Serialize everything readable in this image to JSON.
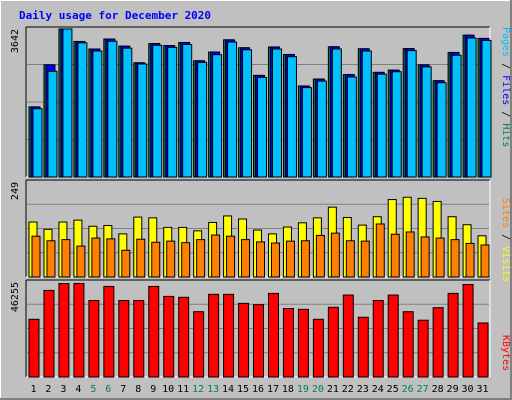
{
  "chart_data": {
    "type": "bar",
    "title": "Daily usage for December 2020",
    "categories": [
      "1",
      "2",
      "3",
      "4",
      "5",
      "6",
      "7",
      "8",
      "9",
      "10",
      "11",
      "12",
      "13",
      "14",
      "15",
      "16",
      "17",
      "18",
      "19",
      "20",
      "21",
      "22",
      "23",
      "24",
      "25",
      "26",
      "27",
      "28",
      "29",
      "30",
      "31"
    ],
    "weekend_days": [
      "5",
      "6",
      "12",
      "13",
      "19",
      "20",
      "26",
      "27"
    ],
    "weekend_label_color": "#00805c",
    "weekday_label_color": "#000000",
    "panels": [
      {
        "name": "hits-files-pages",
        "ymax_label": "3642",
        "ymax": 3642,
        "series": [
          {
            "name": "Hits",
            "color": "#00805c",
            "values": [
              1725,
              2760,
              3642,
              3335,
              3150,
              3395,
              3220,
              2810,
              3285,
              3235,
              3310,
              2860,
              3075,
              3375,
              3180,
              2500,
              3200,
              3015,
              2240,
              2410,
              3205,
              2520,
              3155,
              2575,
              2630,
              3160,
              2760,
              2370,
              3065,
              3490,
              3410
            ]
          },
          {
            "name": "Files",
            "color": "#0000ff",
            "values": [
              1725,
              2760,
              3642,
              3335,
              3150,
              3395,
              3220,
              2810,
              3285,
              3235,
              3310,
              2860,
              3075,
              3375,
              3180,
              2500,
              3200,
              3015,
              2240,
              2410,
              3205,
              2520,
              3155,
              2575,
              2630,
              3160,
              2760,
              2370,
              3065,
              3490,
              3410
            ]
          },
          {
            "name": "Pages",
            "color": "#00c0ff",
            "values": [
              1680,
              2600,
              3642,
              3300,
              3100,
              3340,
              3170,
              2780,
              3240,
              3190,
              3260,
              2820,
              3010,
              3320,
              3130,
              2450,
              3150,
              2960,
              2200,
              2360,
              3150,
              2460,
              3100,
              2530,
              2590,
              3110,
              2710,
              2320,
              2995,
              3420,
              3360
            ]
          }
        ]
      },
      {
        "name": "visits-sites",
        "ymax_label": "249",
        "ymax": 249,
        "series": [
          {
            "name": "Visits",
            "color": "#ffff00",
            "values": [
              144,
              125,
              144,
              149,
              133,
              135,
              113,
              157,
              155,
              130,
              130,
              121,
              143,
              160,
              152,
              123,
              113,
              131,
              142,
              155,
              183,
              156,
              136,
              158,
              203,
              209,
              206,
              198,
              158,
              137,
              108
            ]
          },
          {
            "name": "Sites",
            "color": "#ff8000",
            "values": [
              107,
              95,
              98,
              81,
              102,
              100,
              70,
              99,
              91,
              94,
              90,
              98,
              110,
              107,
              98,
              92,
              89,
              94,
              95,
              109,
              115,
              95,
              94,
              139,
              112,
              118,
              105,
              102,
              98,
              88,
              84
            ]
          }
        ]
      },
      {
        "name": "kbytes",
        "ymax_label": "46255",
        "ymax": 46255,
        "series": [
          {
            "name": "KBytes",
            "color": "#ff0000",
            "values": [
              28100,
              42150,
              45500,
              45550,
              37250,
              44100,
              37250,
              37250,
              44100,
              39250,
              38800,
              31800,
              40250,
              40250,
              35850,
              35250,
              40700,
              33350,
              32950,
              28100,
              33950,
              39900,
              29100,
              37250,
              39900,
              31800,
              27650,
              33750,
              40700,
              45050,
              26300
            ]
          }
        ]
      }
    ],
    "axis_labels": {
      "top_right": [
        {
          "text": "Pages",
          "color": "#00c0ff"
        },
        {
          "text": " / ",
          "color": "#000000"
        },
        {
          "text": "Files",
          "color": "#0000ff"
        },
        {
          "text": " / ",
          "color": "#000000"
        },
        {
          "text": "Hits",
          "color": "#00805c"
        }
      ],
      "middle_right": [
        {
          "text": "Sites",
          "color": "#ff8000"
        },
        {
          "text": " / ",
          "color": "#000000"
        },
        {
          "text": "Visits",
          "color": "#ffff00"
        }
      ],
      "bottom_right": [
        {
          "text": "KBytes",
          "color": "#ff0000"
        }
      ]
    },
    "background_color": "#c0c0c0",
    "title_color": "#0000ff",
    "grid": true
  }
}
